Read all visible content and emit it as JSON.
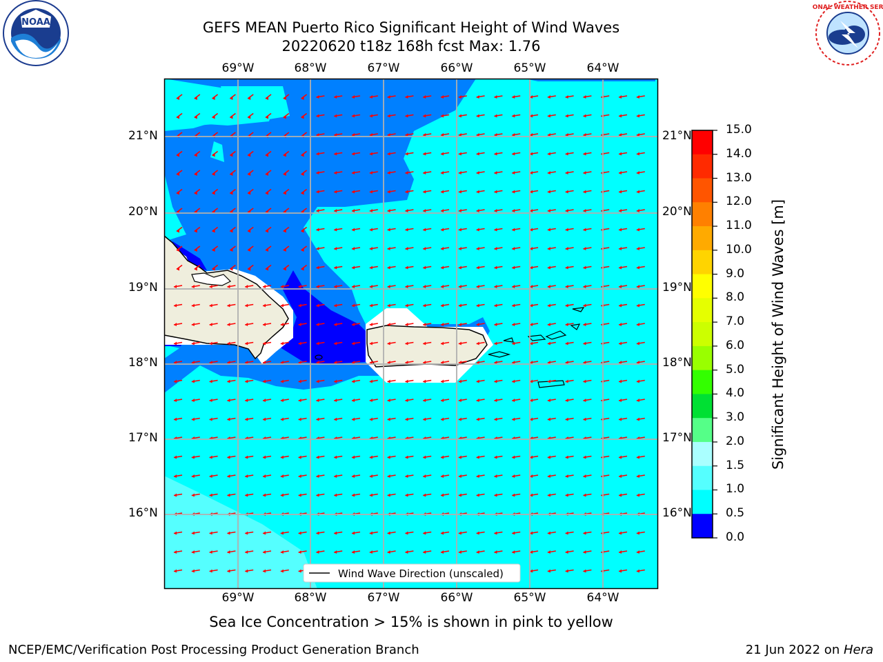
{
  "title": {
    "line1": "GEFS MEAN Puerto Rico Significant Height of Wind Waves",
    "line2": "20220620 t18z 168h fcst   Max: 1.76"
  },
  "logos": {
    "left": {
      "icon": "noaa-logo-icon",
      "text": "NOAA"
    },
    "right": {
      "icon": "national-weather-service-logo-icon",
      "text": "NATIONAL WEATHER SERVICE"
    }
  },
  "map": {
    "lon_labels": [
      "69°W",
      "68°W",
      "67°W",
      "66°W",
      "65°W",
      "64°W"
    ],
    "lat_labels": [
      "21°N",
      "20°N",
      "19°N",
      "18°N",
      "17°N",
      "16°N"
    ],
    "colors": {
      "sea_dark_blue": "#0000ff",
      "sea_blue": "#0080ff",
      "sea_cyan": "#00ffff",
      "sea_light_cyan": "#55ffff",
      "land": "#efeedd",
      "arrow": "#ff0000",
      "grid": "#b0b0b0"
    },
    "legend_label": "Wind Wave Direction (unscaled)"
  },
  "colorbar": {
    "label": "Significant Height of Wind Waves [m]",
    "ticks": [
      "15.0",
      "14.0",
      "13.0",
      "12.0",
      "11.0",
      "10.0",
      "9.0",
      "8.0",
      "7.0",
      "6.0",
      "5.0",
      "4.0",
      "3.0",
      "2.0",
      "1.5",
      "1.0",
      "0.5",
      "0.0"
    ],
    "colors": [
      "#ff0000",
      "#ff2a00",
      "#ff5500",
      "#ff8000",
      "#ffaa00",
      "#ffd400",
      "#ffff00",
      "#e5ff00",
      "#ccff00",
      "#99ff00",
      "#33ff00",
      "#00e033",
      "#55ff88",
      "#aaffff",
      "#55ffff",
      "#00ffff",
      "#0080ff",
      "#0000ff"
    ]
  },
  "note": "Sea Ice Concentration > 15% is shown in pink to yellow",
  "credit": "NCEP/EMC/Verification Post Processing Product Generation Branch",
  "date": {
    "text": "21 Jun 2022 on ",
    "host": "Hera"
  }
}
